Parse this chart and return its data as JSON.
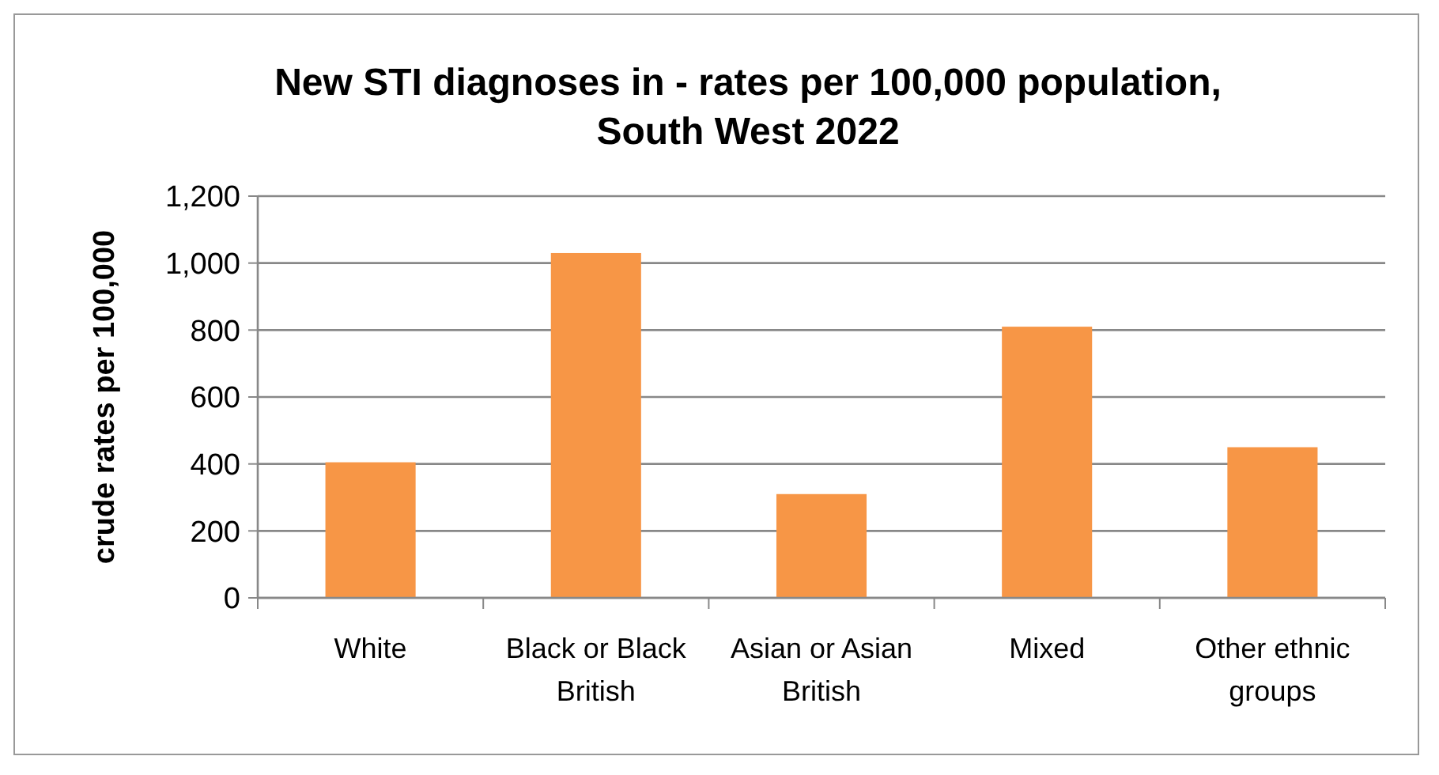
{
  "chart_data": {
    "type": "bar",
    "title": "New STI diagnoses in - rates per 100,000 population, South West 2022",
    "ylabel": "crude rates per 100,000",
    "categories": [
      "White",
      "Black or Black British",
      "Asian or Asian British",
      "Mixed",
      "Other ethnic groups"
    ],
    "values": [
      405,
      1030,
      310,
      810,
      450
    ],
    "color": "#f79646",
    "ylim": [
      0,
      1200
    ],
    "yticks": [
      {
        "value": 0,
        "label": "0"
      },
      {
        "value": 200,
        "label": "200"
      },
      {
        "value": 400,
        "label": "400"
      },
      {
        "value": 600,
        "label": "600"
      },
      {
        "value": 800,
        "label": "800"
      },
      {
        "value": 1000,
        "label": "1,000"
      },
      {
        "value": 1200,
        "label": "1,200"
      }
    ],
    "grid": "y"
  }
}
